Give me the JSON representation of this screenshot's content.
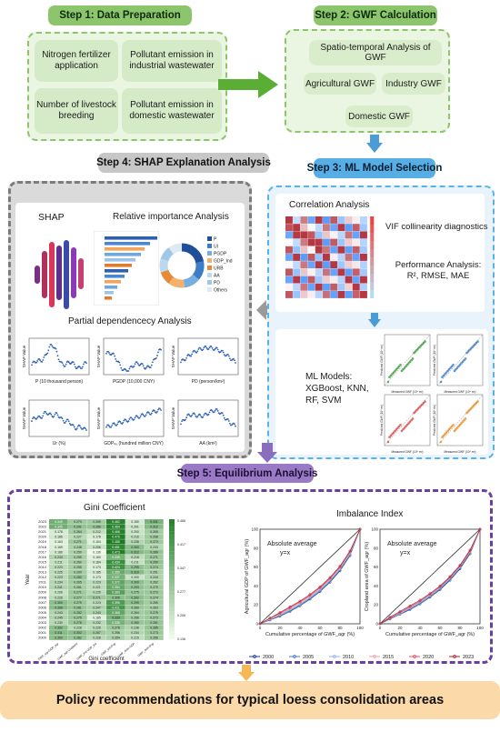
{
  "steps": {
    "step1": "Step 1: Data Preparation",
    "step2": "Step 2: GWF Calculation",
    "step3": "Step 3: ML Model Selection",
    "step4": "Step 4: SHAP Explanation Analysis",
    "step5": "Step 5: Equilibrium Analysis"
  },
  "data_prep": {
    "items": [
      "Nitrogen fertilizer application",
      "Pollutant emission in industrial wastewater",
      "Number of livestock breeding",
      "Pollutant emission in domestic wastewater"
    ]
  },
  "gwf": {
    "spatio": "Spatio-temporal Analysis of GWF",
    "agri": "Agricultural GWF",
    "industry": "Industry GWF",
    "domestic": "Domestic GWF"
  },
  "ml": {
    "correlation": "Correlation Analysis",
    "vif": "VIF collinearity diagnostics",
    "performance": "Performance Analysis: R², RMSE, MAE",
    "models": "ML Models: XGBoost, KNN, RF, SVM",
    "scatter_xlabel": "Measured GWF (10⁸ m³)",
    "scatter_ylabel": "Predicted GWF (10⁸ m³)"
  },
  "shap": {
    "shap_label": "SHAP",
    "relative": "Relative importance Analysis",
    "partial": "Partial dependencecy Analysis",
    "ylabel": "SHAP Value",
    "plots": [
      {
        "xlabel": "P (10 thousand person)"
      },
      {
        "xlabel": "PGDP (10,000 CNY)"
      },
      {
        "xlabel": "PD (person/km²)"
      },
      {
        "xlabel": "Ur (%)"
      },
      {
        "xlabel": "GDPₙₒ (hundred million CNY)"
      },
      {
        "xlabel": "AA (km²)"
      }
    ],
    "legend": [
      "P",
      "UI",
      "PGDP",
      "GDP_Ind",
      "URB",
      "AA",
      "PD",
      "Others"
    ],
    "legend_colors": [
      "#1f4e9a",
      "#3d7cc9",
      "#76aee0",
      "#f2b06a",
      "#e68a3a",
      "#bcd7ee",
      "#9ec8e6",
      "#dfe9f3"
    ],
    "importance_colors": [
      "#2f5faf",
      "#4d86cf",
      "#f0a55b",
      "#6fa6dc",
      "#9cc3e8",
      "#e27b2b"
    ],
    "cluster_colors": [
      "#7a2f82",
      "#b2315c",
      "#d9375a",
      "#5e2f8f",
      "#3b4ba8",
      "#8c3ab8",
      "#c63f72"
    ]
  },
  "gini": {
    "title": "Gini Coefficient",
    "xlabel": "Gini coefficient",
    "ylabel": "Year",
    "years": [
      "2023",
      "2022",
      "2021",
      "2020",
      "2019",
      "2018",
      "2017",
      "2016",
      "2015",
      "2014",
      "2013",
      "2012",
      "2011",
      "2010",
      "2009",
      "2008",
      "2007",
      "2006",
      "2005",
      "2004",
      "2003",
      "2002",
      "2001",
      "2000"
    ],
    "columns": [
      "GWF_agr-GDP_agr",
      "GWF_agr-Cropland",
      "GWF_ind-GDP_ind",
      "GWF_ind-Pop",
      "GWF_dom-GDP",
      "GWF_dom-Pop"
    ],
    "values": [
      [
        0.345,
        0.27,
        0.265,
        0.462,
        0.18,
        0.331
      ],
      [
        0.345,
        0.291,
        0.286,
        0.464,
        0.201,
        0.312
      ],
      [
        0.178,
        0.264,
        0.212,
        0.466,
        0.2,
        0.265
      ],
      [
        0.186,
        0.227,
        0.178,
        0.476,
        0.216,
        0.268
      ],
      [
        0.163,
        0.271,
        0.164,
        0.488,
        0.238,
        0.273
      ],
      [
        0.169,
        0.248,
        0.206,
        0.451,
        0.3,
        0.233
      ],
      [
        0.186,
        0.25,
        0.136,
        0.473,
        0.312,
        0.289
      ],
      [
        0.244,
        0.255,
        0.16,
        0.335,
        0.218,
        0.271
      ],
      [
        0.211,
        0.26,
        0.184,
        0.434,
        0.211,
        0.29
      ],
      [
        0.223,
        0.255,
        0.173,
        0.424,
        0.295,
        0.274
      ],
      [
        0.225,
        0.26,
        0.185,
        0.359,
        0.31,
        0.251
      ],
      [
        0.223,
        0.28,
        0.173,
        0.337,
        0.2,
        0.244
      ],
      [
        0.234,
        0.265,
        0.223,
        0.372,
        0.3,
        0.262
      ],
      [
        0.241,
        0.261,
        0.221,
        0.364,
        0.293,
        0.27
      ],
      [
        0.206,
        0.271,
        0.225,
        0.383,
        0.275,
        0.273
      ],
      [
        0.226,
        0.277,
        0.271,
        0.305,
        0.302,
        0.274
      ],
      [
        0.3,
        0.275,
        0.223,
        0.396,
        0.299,
        0.265
      ],
      [
        0.306,
        0.281,
        0.247,
        0.411,
        0.28,
        0.263
      ],
      [
        0.243,
        0.282,
        0.243,
        0.368,
        0.264,
        0.275
      ],
      [
        0.245,
        0.275,
        0.165,
        0.333,
        0.266,
        0.273
      ],
      [
        0.23,
        0.278,
        0.232,
        0.335,
        0.28,
        0.281
      ],
      [
        0.302,
        0.228,
        0.226,
        0.278,
        0.238,
        0.285
      ],
      [
        0.311,
        0.302,
        0.267,
        0.256,
        0.234,
        0.273
      ],
      [
        0.3,
        0.282,
        0.228,
        0.254,
        0.215,
        0.266
      ]
    ],
    "colorbar_ticks": [
      "0.466",
      "0.417",
      "0.347",
      "0.277",
      "0.206",
      "0.136"
    ]
  },
  "imbalance": {
    "title": "Imbalance Index",
    "left_ylabel": "Agricultural GDP of GWF_agr (%)",
    "right_ylabel": "Cropland area of GWF_agr (%)",
    "xlabel": "Cumulative percentage of GWF_agr (%)",
    "abs_avg": "Absolute average",
    "yx": "y=x",
    "legend": [
      "2000",
      "2005",
      "2010",
      "2015",
      "2020",
      "2023"
    ],
    "legend_colors": [
      "#1b3a8c",
      "#4a78c8",
      "#8fb8e4",
      "#e9a0a8",
      "#d85060",
      "#b01e2e"
    ],
    "ticks": [
      "0",
      "20",
      "40",
      "60",
      "80",
      "100"
    ]
  },
  "chart_data": [
    {
      "type": "line",
      "title": "",
      "xlabel": "Cumulative percentage of GWF_agr (%)",
      "ylabel": "Agricultural GDP of GWF_agr (%)",
      "xlim": [
        0,
        100
      ],
      "ylim": [
        0,
        100
      ],
      "x": [
        0,
        10,
        20,
        30,
        40,
        50,
        60,
        70,
        80,
        90,
        100
      ],
      "series": [
        {
          "name": "y=x",
          "values": [
            0,
            10,
            20,
            30,
            40,
            50,
            60,
            70,
            80,
            90,
            100
          ]
        },
        {
          "name": "2000",
          "values": [
            0,
            4,
            8,
            13,
            19,
            26,
            34,
            44,
            56,
            72,
            100
          ]
        },
        {
          "name": "2005",
          "values": [
            0,
            4,
            9,
            14,
            20,
            27,
            35,
            45,
            57,
            73,
            100
          ]
        },
        {
          "name": "2010",
          "values": [
            0,
            5,
            10,
            15,
            21,
            28,
            36,
            46,
            58,
            74,
            100
          ]
        },
        {
          "name": "2015",
          "values": [
            0,
            5,
            10,
            16,
            22,
            29,
            37,
            47,
            59,
            75,
            100
          ]
        },
        {
          "name": "2020",
          "values": [
            0,
            6,
            11,
            17,
            23,
            30,
            38,
            48,
            60,
            76,
            100
          ]
        },
        {
          "name": "2023",
          "values": [
            0,
            6,
            12,
            18,
            24,
            31,
            39,
            49,
            61,
            77,
            100
          ]
        }
      ]
    },
    {
      "type": "line",
      "title": "",
      "xlabel": "Cumulative percentage of GWF_agr (%)",
      "ylabel": "Cropland area of GWF_agr (%)",
      "xlim": [
        0,
        100
      ],
      "ylim": [
        0,
        100
      ],
      "x": [
        0,
        10,
        20,
        30,
        40,
        50,
        60,
        70,
        80,
        90,
        100
      ],
      "series": [
        {
          "name": "y=x",
          "values": [
            0,
            10,
            20,
            30,
            40,
            50,
            60,
            70,
            80,
            90,
            100
          ]
        },
        {
          "name": "2000",
          "values": [
            0,
            5,
            10,
            15,
            21,
            28,
            36,
            46,
            58,
            74,
            100
          ]
        },
        {
          "name": "2005",
          "values": [
            0,
            5,
            10,
            16,
            22,
            29,
            37,
            47,
            59,
            75,
            100
          ]
        },
        {
          "name": "2010",
          "values": [
            0,
            6,
            11,
            17,
            23,
            30,
            38,
            48,
            60,
            76,
            100
          ]
        },
        {
          "name": "2015",
          "values": [
            0,
            6,
            12,
            17,
            24,
            31,
            39,
            49,
            61,
            76,
            100
          ]
        },
        {
          "name": "2020",
          "values": [
            0,
            6,
            12,
            18,
            24,
            31,
            39,
            49,
            61,
            77,
            100
          ]
        },
        {
          "name": "2023",
          "values": [
            0,
            7,
            13,
            19,
            25,
            32,
            40,
            50,
            62,
            78,
            100
          ]
        }
      ]
    }
  ],
  "policy": "Policy recommendations for typical loess consolidation areas"
}
